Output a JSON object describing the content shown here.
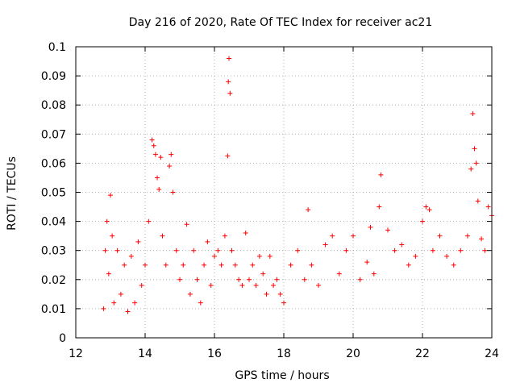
{
  "chart_data": {
    "type": "scatter",
    "title": "Day 216 of 2020, Rate Of TEC Index for receiver ac21",
    "xlabel": "GPS time / hours",
    "ylabel": "ROTI / TECUs",
    "xlim": [
      12,
      24
    ],
    "ylim": [
      0,
      0.1
    ],
    "x_ticks": [
      "12",
      "14",
      "16",
      "18",
      "20",
      "22",
      "24"
    ],
    "y_ticks": [
      "0",
      "0.01",
      "0.02",
      "0.03",
      "0.04",
      "0.05",
      "0.06",
      "0.07",
      "0.08",
      "0.09",
      "0.1"
    ],
    "grid": true,
    "marker": "+",
    "color": "#ff0000",
    "series": [
      {
        "name": "ROTI",
        "x": [
          12.8,
          12.85,
          12.9,
          12.95,
          13.0,
          13.05,
          13.1,
          13.2,
          13.3,
          13.4,
          13.5,
          13.6,
          13.7,
          13.8,
          13.9,
          14.0,
          14.1,
          14.2,
          14.25,
          14.3,
          14.35,
          14.4,
          14.45,
          14.5,
          14.6,
          14.7,
          14.75,
          14.8,
          14.9,
          15.0,
          15.1,
          15.2,
          15.3,
          15.4,
          15.5,
          15.6,
          15.7,
          15.8,
          15.9,
          16.0,
          16.1,
          16.2,
          16.3,
          16.38,
          16.4,
          16.42,
          16.45,
          16.5,
          16.6,
          16.7,
          16.8,
          16.9,
          17.0,
          17.1,
          17.2,
          17.3,
          17.4,
          17.5,
          17.6,
          17.7,
          17.8,
          17.9,
          18.0,
          18.2,
          18.4,
          18.6,
          18.7,
          18.8,
          19.0,
          19.2,
          19.4,
          19.6,
          19.8,
          20.0,
          20.2,
          20.4,
          20.5,
          20.6,
          20.75,
          20.8,
          21.0,
          21.2,
          21.4,
          21.6,
          21.8,
          22.0,
          22.1,
          22.2,
          22.3,
          22.5,
          22.7,
          22.9,
          23.1,
          23.3,
          23.4,
          23.45,
          23.5,
          23.55,
          23.6,
          23.7,
          23.8,
          23.9,
          24.0
        ],
        "values": [
          0.01,
          0.03,
          0.04,
          0.022,
          0.049,
          0.035,
          0.012,
          0.03,
          0.015,
          0.025,
          0.009,
          0.028,
          0.012,
          0.033,
          0.018,
          0.025,
          0.04,
          0.068,
          0.066,
          0.063,
          0.055,
          0.051,
          0.062,
          0.035,
          0.025,
          0.059,
          0.063,
          0.05,
          0.03,
          0.02,
          0.025,
          0.039,
          0.015,
          0.03,
          0.02,
          0.012,
          0.025,
          0.033,
          0.018,
          0.028,
          0.03,
          0.025,
          0.035,
          0.0625,
          0.088,
          0.096,
          0.084,
          0.03,
          0.025,
          0.02,
          0.018,
          0.036,
          0.02,
          0.025,
          0.018,
          0.028,
          0.022,
          0.015,
          0.028,
          0.018,
          0.02,
          0.015,
          0.012,
          0.025,
          0.03,
          0.02,
          0.044,
          0.025,
          0.018,
          0.032,
          0.035,
          0.022,
          0.03,
          0.035,
          0.02,
          0.026,
          0.038,
          0.022,
          0.045,
          0.056,
          0.037,
          0.03,
          0.032,
          0.025,
          0.028,
          0.04,
          0.045,
          0.044,
          0.03,
          0.035,
          0.028,
          0.025,
          0.03,
          0.035,
          0.058,
          0.077,
          0.065,
          0.06,
          0.047,
          0.034,
          0.03,
          0.045,
          0.042
        ]
      }
    ]
  }
}
